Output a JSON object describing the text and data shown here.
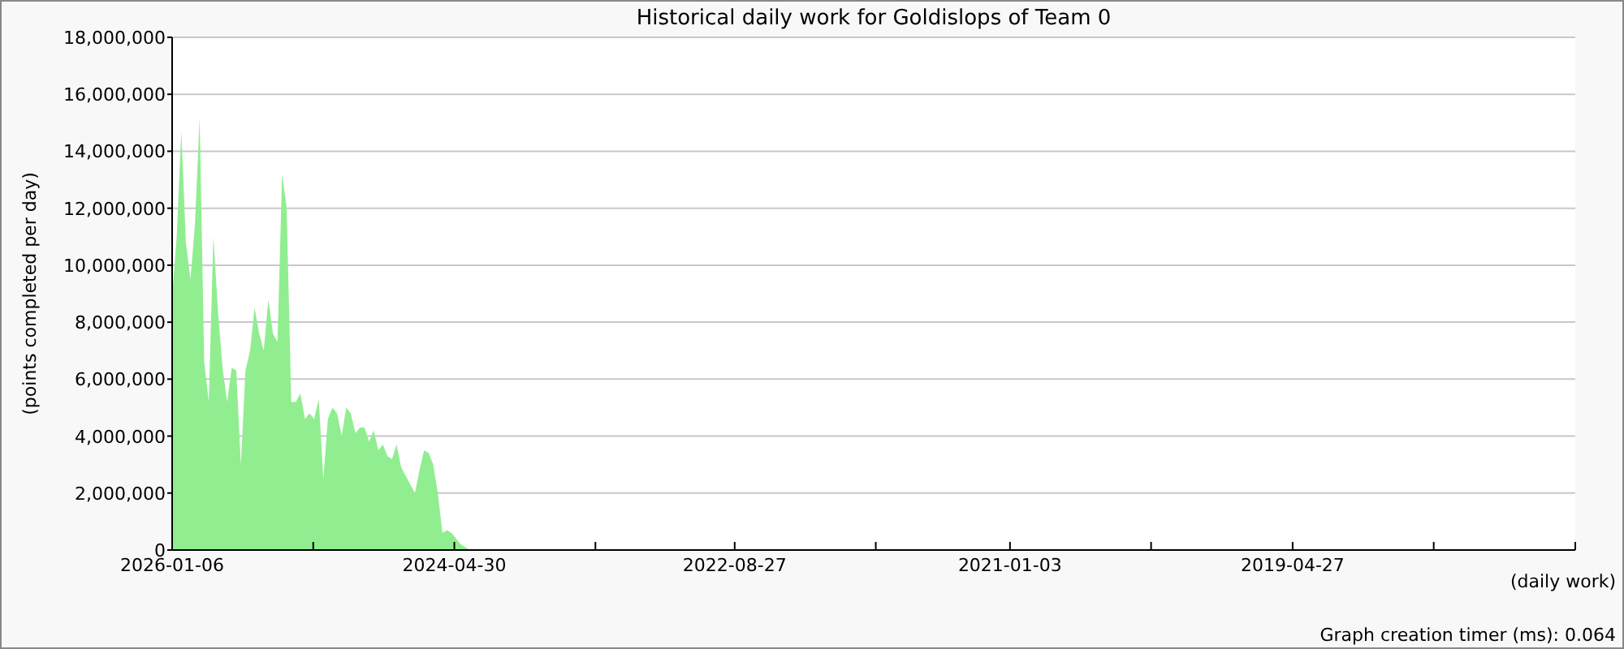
{
  "chart_data": {
    "type": "area",
    "title": "Historical daily work for Goldislops of Team 0",
    "xlabel": "(daily work)",
    "ylabel": "(points completed per day)",
    "annotations": [
      "Graph creation timer (ms): 0.064"
    ],
    "x": [
      "2026-01-06",
      "2025-12-27",
      "2025-12-17",
      "2025-12-07",
      "2025-11-27",
      "2025-11-17",
      "2025-11-07",
      "2025-10-28",
      "2025-10-18",
      "2025-10-08",
      "2025-09-28",
      "2025-09-18",
      "2025-09-08",
      "2025-08-29",
      "2025-08-19",
      "2025-08-09",
      "2025-07-30",
      "2025-07-20",
      "2025-07-10",
      "2025-06-30",
      "2025-06-20",
      "2025-06-10",
      "2025-05-31",
      "2025-05-21",
      "2025-05-11",
      "2025-05-01",
      "2025-04-21",
      "2025-04-11",
      "2025-04-01",
      "2025-03-22",
      "2025-03-12",
      "2025-03-02",
      "2025-02-20",
      "2025-02-10",
      "2025-01-31",
      "2025-01-21",
      "2025-01-11",
      "2025-01-01",
      "2024-12-22",
      "2024-12-12",
      "2024-12-02",
      "2024-11-22",
      "2024-11-12",
      "2024-11-02",
      "2024-10-23",
      "2024-10-13",
      "2024-10-03",
      "2024-09-23",
      "2024-09-13",
      "2024-09-03",
      "2024-08-24",
      "2024-08-14",
      "2024-08-04",
      "2024-07-25",
      "2024-07-15",
      "2024-07-05",
      "2024-06-25",
      "2024-06-15",
      "2024-06-05",
      "2024-05-26",
      "2024-05-16",
      "2024-05-06",
      "2024-04-26",
      "2024-04-16",
      "2024-04-06",
      "2024-03-27"
    ],
    "series": [
      {
        "color": "#90ee90",
        "values": [
          8900000,
          11000000,
          14700000,
          10800000,
          9500000,
          11500000,
          15200000,
          6600000,
          5200000,
          11000000,
          8400000,
          6400000,
          5200000,
          6400000,
          6300000,
          3000000,
          6300000,
          7000000,
          8500000,
          7600000,
          7000000,
          8800000,
          7600000,
          7300000,
          13200000,
          12000000,
          5200000,
          5200000,
          5500000,
          4600000,
          4800000,
          4600000,
          5300000,
          2500000,
          4600000,
          5000000,
          4800000,
          4000000,
          5000000,
          4800000,
          4100000,
          4300000,
          4300000,
          3800000,
          4200000,
          3500000,
          3700000,
          3300000,
          3200000,
          3700000,
          2900000,
          2600000,
          2300000,
          2000000,
          2800000,
          3500000,
          3400000,
          3000000,
          2000000,
          600000,
          700000,
          600000,
          400000,
          200000,
          100000,
          0
        ]
      }
    ],
    "xlim": [
      "2026-01-06",
      "2017-08-18"
    ],
    "xticks": [
      {
        "value": "2026-01-06",
        "label": "2026-01-06"
      },
      {
        "value": "2025-03-04",
        "label": null
      },
      {
        "value": "2024-04-30",
        "label": "2024-04-30"
      },
      {
        "value": "2023-06-27",
        "label": null
      },
      {
        "value": "2022-08-27",
        "label": "2022-08-27"
      },
      {
        "value": "2021-10-23",
        "label": null
      },
      {
        "value": "2021-01-03",
        "label": "2021-01-03"
      },
      {
        "value": "2020-03-01",
        "label": null
      },
      {
        "value": "2019-04-27",
        "label": "2019-04-27"
      },
      {
        "value": "2018-06-23",
        "label": null
      },
      {
        "value": "2017-08-18",
        "label": null
      }
    ],
    "ylim": [
      0,
      18000000
    ],
    "yticks": [
      {
        "value": 0,
        "label": "0"
      },
      {
        "value": 2000000,
        "label": "2,000,000"
      },
      {
        "value": 4000000,
        "label": "4,000,000"
      },
      {
        "value": 6000000,
        "label": "6,000,000"
      },
      {
        "value": 8000000,
        "label": "8,000,000"
      },
      {
        "value": 10000000,
        "label": "10,000,000"
      },
      {
        "value": 12000000,
        "label": "12,000,000"
      },
      {
        "value": 14000000,
        "label": "14,000,000"
      },
      {
        "value": 16000000,
        "label": "16,000,000"
      },
      {
        "value": 18000000,
        "label": "18,000,000"
      }
    ],
    "grid": "y"
  }
}
